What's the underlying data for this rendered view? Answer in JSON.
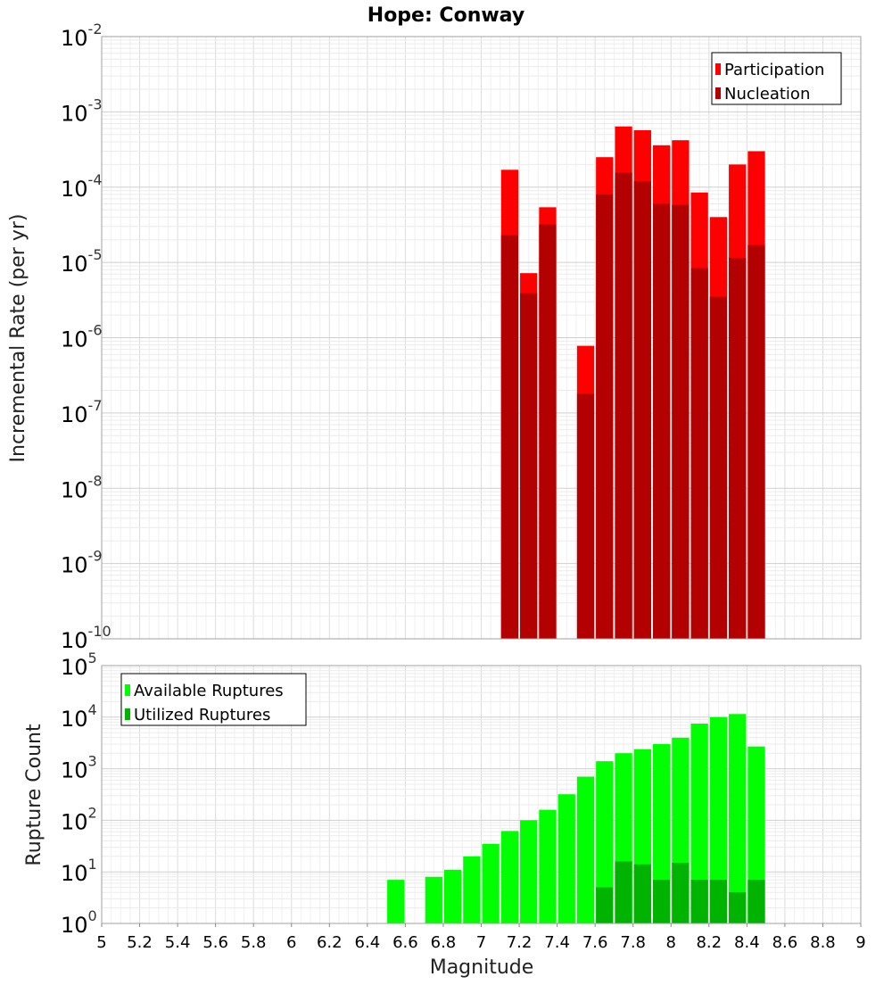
{
  "title": "Hope: Conway",
  "colors": {
    "participation": "#ff0000",
    "nucleation": "#b30000",
    "available": "#00ff00",
    "utilized": "#00b300"
  },
  "chart_data": [
    {
      "type": "bar",
      "title": "Hope: Conway",
      "ylabel": "Incremental Rate (per yr)",
      "xlabel": "",
      "yscale": "log",
      "ylim": [
        1e-10,
        0.01
      ],
      "xlim": [
        5,
        9
      ],
      "y_tick_exponents": [
        "-10",
        "-9",
        "-8",
        "-7",
        "-6",
        "-5",
        "-4",
        "-3",
        "-2"
      ],
      "grid": true,
      "legend": "top-right",
      "bar_width": 0.1,
      "series": [
        {
          "name": "Participation",
          "x": [
            7.15,
            7.25,
            7.35,
            7.55,
            7.65,
            7.75,
            7.85,
            7.95,
            8.05,
            8.15,
            8.25,
            8.35,
            8.45
          ],
          "values": [
            0.00017,
            7.2e-06,
            5.4e-05,
            7.8e-07,
            0.00025,
            0.00064,
            0.00057,
            0.00036,
            0.00042,
            8.5e-05,
            4e-05,
            0.0002,
            0.0003
          ]
        },
        {
          "name": "Nucleation",
          "x": [
            7.15,
            7.25,
            7.35,
            7.55,
            7.65,
            7.75,
            7.85,
            7.95,
            8.05,
            8.15,
            8.25,
            8.35,
            8.45
          ],
          "values": [
            2.3e-05,
            3.9e-06,
            3.2e-05,
            1.8e-07,
            8e-05,
            0.000155,
            0.00012,
            6e-05,
            5.8e-05,
            8.4e-06,
            3.5e-06,
            1.15e-05,
            1.7e-05
          ]
        }
      ]
    },
    {
      "type": "bar",
      "ylabel": "Rupture Count",
      "xlabel": "Magnitude",
      "yscale": "log",
      "ylim": [
        1,
        100000.0
      ],
      "xlim": [
        5,
        9
      ],
      "y_tick_exponents": [
        "0",
        "1",
        "2",
        "3",
        "4",
        "5"
      ],
      "x_ticks": [
        "5",
        "5.2",
        "5.4",
        "5.6",
        "5.8",
        "6",
        "6.2",
        "6.4",
        "6.6",
        "6.8",
        "7",
        "7.2",
        "7.4",
        "7.6",
        "7.8",
        "8",
        "8.2",
        "8.4",
        "8.6",
        "8.8",
        "9"
      ],
      "grid": true,
      "legend": "top-left",
      "bar_width": 0.1,
      "series": [
        {
          "name": "Available Ruptures",
          "x": [
            6.55,
            6.75,
            6.85,
            6.95,
            7.05,
            7.15,
            7.25,
            7.35,
            7.45,
            7.55,
            7.65,
            7.75,
            7.85,
            7.95,
            8.05,
            8.15,
            8.25,
            8.35,
            8.45
          ],
          "values": [
            7,
            8,
            11,
            20,
            35,
            62,
            100,
            160,
            320,
            700,
            1400,
            2000,
            2400,
            3000,
            4000,
            7500,
            10000,
            11500,
            2700
          ]
        },
        {
          "name": "Utilized Ruptures",
          "x": [
            7.15,
            7.25,
            7.35,
            7.55,
            7.65,
            7.75,
            7.85,
            7.95,
            8.05,
            8.15,
            8.25,
            8.35,
            8.45
          ],
          "values": [
            1,
            1,
            1,
            1,
            5,
            16,
            14,
            7,
            15,
            7,
            7,
            4,
            7
          ]
        }
      ]
    }
  ]
}
